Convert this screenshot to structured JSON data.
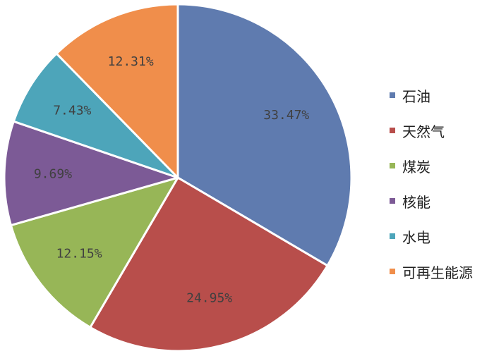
{
  "chart_data": {
    "type": "pie",
    "slices": [
      {
        "label": "石油",
        "value": 33.47,
        "display": "33.47%",
        "color": "#5F7BAF"
      },
      {
        "label": "天然气",
        "value": 24.95,
        "display": "24.95%",
        "color": "#B84E4B"
      },
      {
        "label": "煤炭",
        "value": 12.15,
        "display": "12.15%",
        "color": "#97B657"
      },
      {
        "label": "核能",
        "value": 9.69,
        "display": "9.69%",
        "color": "#7C5A96"
      },
      {
        "label": "水电",
        "value": 7.43,
        "display": "7.43%",
        "color": "#4DA5BA"
      },
      {
        "label": "可再生能源",
        "value": 12.31,
        "display": "12.31%",
        "color": "#F08E4B"
      }
    ],
    "start": "12 o'clock",
    "direction": "clockwise",
    "legend": "right"
  }
}
